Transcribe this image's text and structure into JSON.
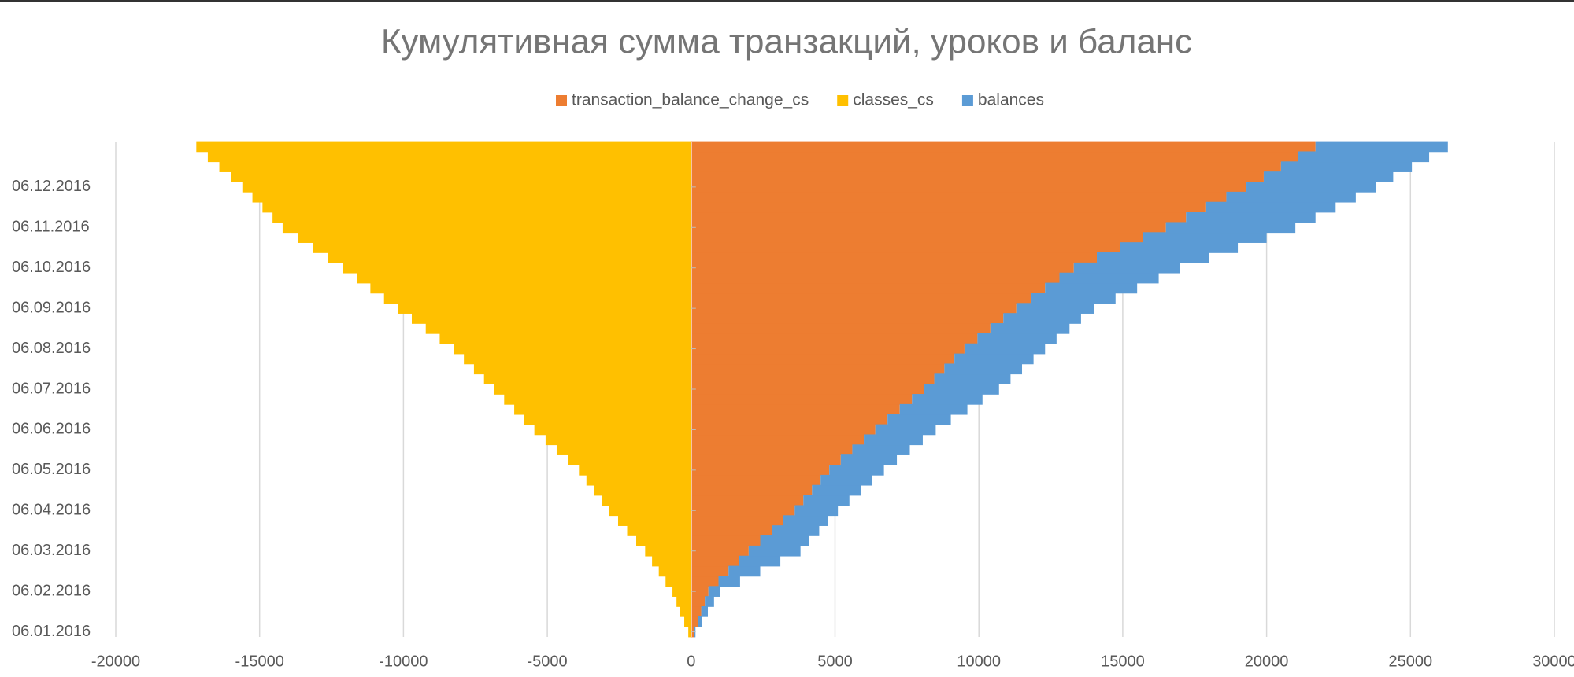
{
  "chart_data": {
    "type": "stacked_bar_horizontal",
    "title": "Кумулятивная сумма транзакций, уроков и баланс",
    "categories": [
      "06.01.2016",
      null,
      null,
      null,
      "06.02.2016",
      null,
      null,
      null,
      "06.03.2016",
      null,
      null,
      null,
      "06.04.2016",
      null,
      null,
      null,
      "06.05.2016",
      null,
      null,
      null,
      "06.06.2016",
      null,
      null,
      null,
      "06.07.2016",
      null,
      null,
      null,
      "06.08.2016",
      null,
      null,
      null,
      "06.09.2016",
      null,
      null,
      null,
      "06.10.2016",
      null,
      null,
      null,
      "06.11.2016",
      null,
      null,
      null,
      "06.12.2016",
      null,
      null,
      null,
      null
    ],
    "series": [
      {
        "name": "transaction_balance_change_cs",
        "color": "#ED7D31",
        "values": [
          100,
          225,
          350,
          475,
          600,
          950,
          1300,
          1650,
          2000,
          2400,
          2800,
          3200,
          3600,
          3900,
          4200,
          4500,
          4800,
          5200,
          5600,
          6000,
          6400,
          6825,
          7250,
          7675,
          8100,
          8450,
          8800,
          9150,
          9500,
          9950,
          10400,
          10850,
          11300,
          11800,
          12300,
          12800,
          13300,
          14100,
          14900,
          15700,
          16500,
          17200,
          17900,
          18600,
          19300,
          19900,
          20500,
          21100,
          21700
        ]
      },
      {
        "name": "classes_cs",
        "color": "#FFC000",
        "values": [
          -100,
          -240,
          -380,
          -510,
          -650,
          -890,
          -1125,
          -1360,
          -1600,
          -1910,
          -2225,
          -2540,
          -2850,
          -3110,
          -3375,
          -3640,
          -3900,
          -4290,
          -4675,
          -5060,
          -5450,
          -5800,
          -6150,
          -6500,
          -6850,
          -7200,
          -7550,
          -7900,
          -8250,
          -8740,
          -9225,
          -9710,
          -10200,
          -10675,
          -11150,
          -11625,
          -12100,
          -12625,
          -13150,
          -13675,
          -14200,
          -14550,
          -14900,
          -15250,
          -15600,
          -16000,
          -16400,
          -16800,
          -17200
        ]
      },
      {
        "name": "balances",
        "color": "#5B9BD5",
        "values": [
          50,
          140,
          230,
          320,
          400,
          750,
          1100,
          1450,
          1800,
          1700,
          1650,
          1550,
          1500,
          1600,
          1700,
          1800,
          1900,
          1950,
          2000,
          2050,
          2100,
          2200,
          2350,
          2450,
          2600,
          2650,
          2700,
          2750,
          2800,
          2750,
          2750,
          2700,
          2700,
          2950,
          3200,
          3450,
          3700,
          3900,
          4100,
          4300,
          4500,
          4500,
          4500,
          4500,
          4500,
          4500,
          4550,
          4550,
          4600
        ]
      }
    ],
    "xlim": [
      -20000,
      30000
    ],
    "xticks": [
      -20000,
      -15000,
      -10000,
      -5000,
      0,
      5000,
      10000,
      15000,
      20000,
      25000,
      30000
    ],
    "grid": true,
    "legend": "top"
  }
}
